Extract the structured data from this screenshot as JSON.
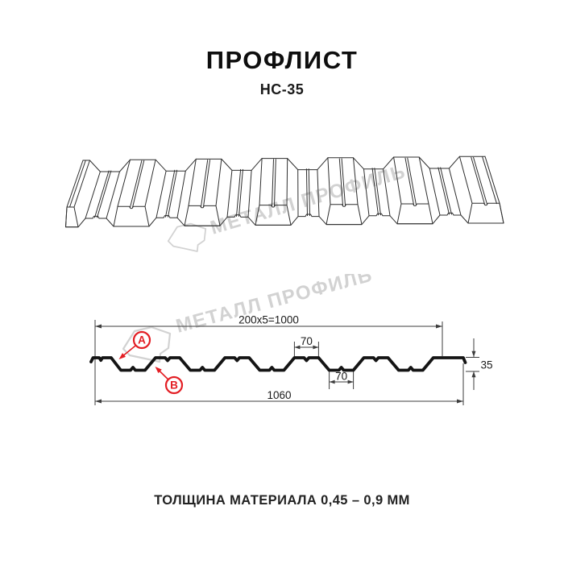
{
  "header": {
    "title": "ПРОФЛИСТ",
    "subtitle": "НС-35"
  },
  "watermark": {
    "text": "МЕТАЛЛ ПРОФИЛЬ"
  },
  "cross_section": {
    "dim_top_total": "200x5=1000",
    "dim_crest_width": "70",
    "dim_trough_width": "70",
    "dim_height": "35",
    "dim_overall_width": "1060",
    "label_a": "A",
    "label_b": "B"
  },
  "footer": {
    "text": "ТОЛЩИНА МАТЕРИАЛА 0,45 – 0,9 ММ"
  },
  "colors": {
    "accent_red": "#e31e24",
    "line_dark": "#141414",
    "watermark_gray": "#d2d2d2"
  }
}
